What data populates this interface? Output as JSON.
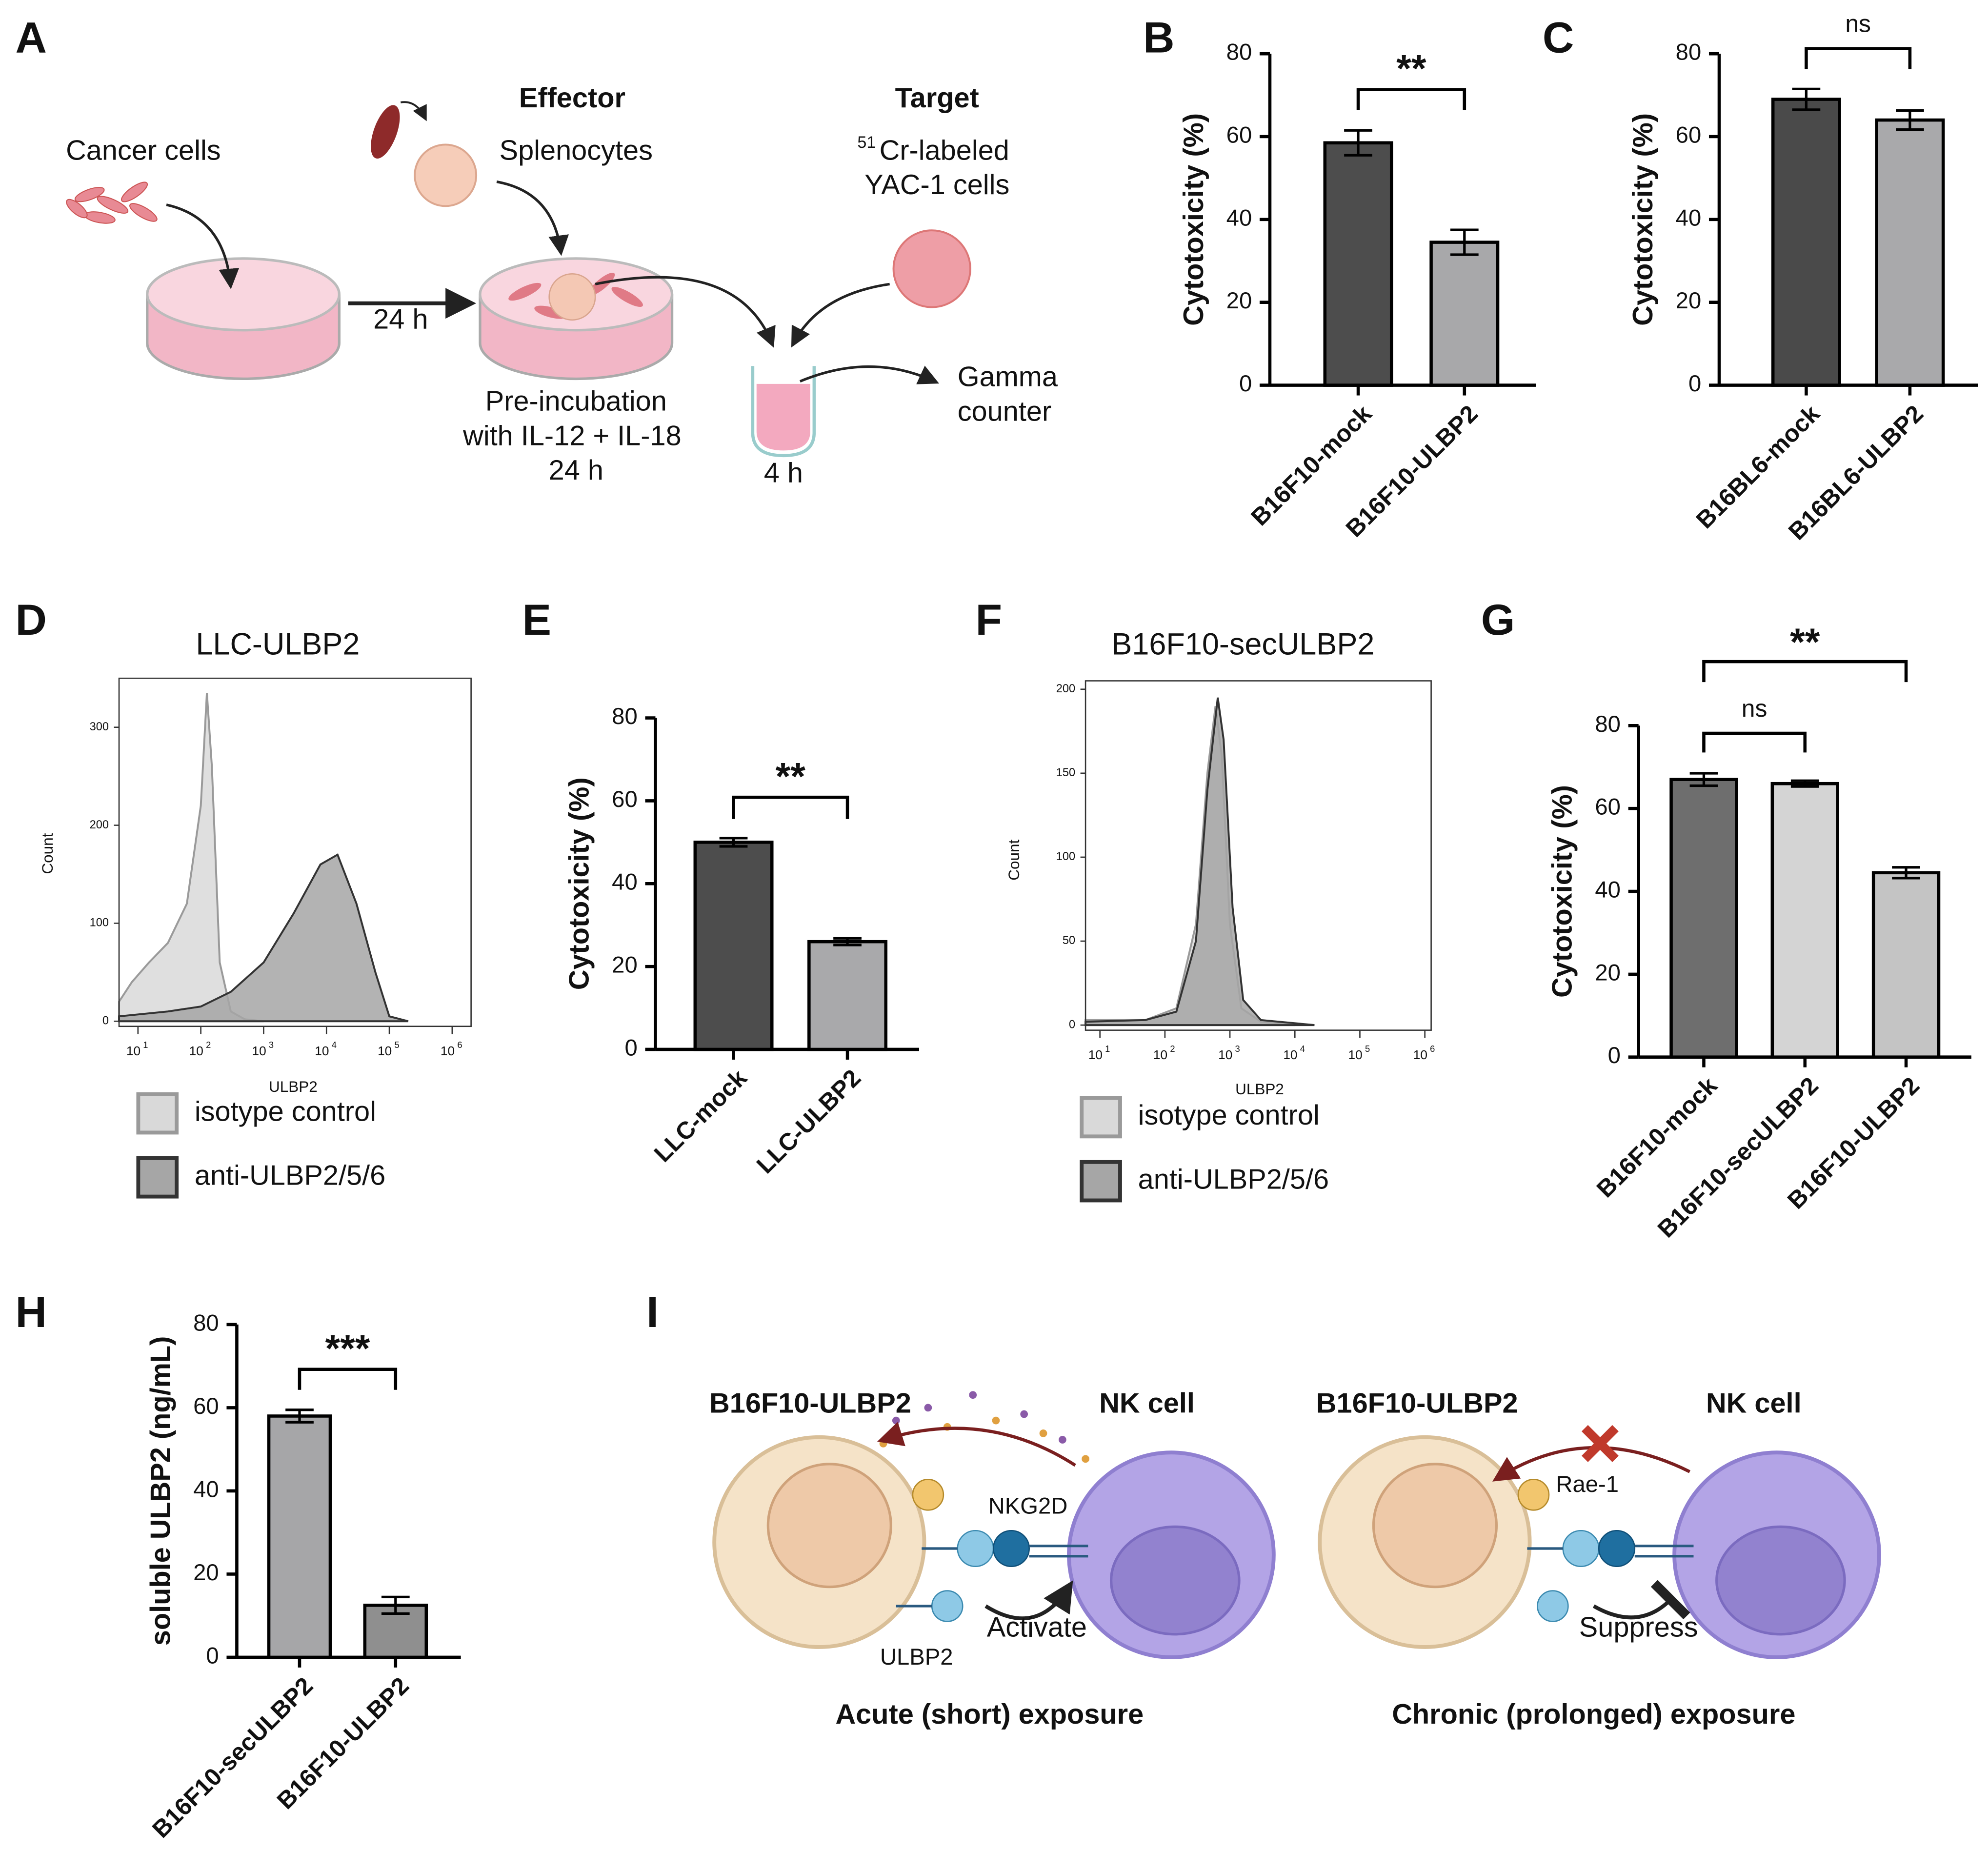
{
  "diagram_a": {
    "panel": "A",
    "cancer": "Cancer cells",
    "effector": "Effector",
    "splenocytes": "Splenocytes",
    "target": "Target",
    "target_sup": "51",
    "target_line1": "Cr-labeled",
    "target_line2": "YAC-1 cells",
    "arrow_time": "24 h",
    "preinc_line1": "Pre-incubation",
    "preinc_line2": "with IL-12 + IL-18",
    "preinc_line3": "24 h",
    "tube_time": "4 h",
    "gamma_line1": "Gamma",
    "gamma_line2": "counter"
  },
  "chart_data": [
    {
      "panel": "B",
      "type": "bar",
      "ylabel": "Cytotoxicity (%)",
      "categories": [
        "B16F10-mock",
        "B16F10-ULBP2"
      ],
      "values": [
        58.5,
        34.5
      ],
      "errors": [
        3,
        3
      ],
      "colors": [
        "#4d4d4d",
        "#a8a8aa"
      ],
      "ylim": [
        0,
        80
      ],
      "yticks": [
        0,
        20,
        40,
        60,
        80
      ],
      "significance": [
        {
          "label": "**",
          "between": [
            0,
            1
          ]
        }
      ]
    },
    {
      "panel": "C",
      "type": "bar",
      "ylabel": "Cytotoxicity (%)",
      "categories": [
        "B16BL6-mock",
        "B16BL6-ULBP2"
      ],
      "values": [
        69,
        64
      ],
      "errors": [
        2.5,
        2.3
      ],
      "colors": [
        "#4a4a4a",
        "#a9a9ab"
      ],
      "ylim": [
        0,
        80
      ],
      "yticks": [
        0,
        20,
        40,
        60,
        80
      ],
      "significance": [
        {
          "label": "ns",
          "between": [
            0,
            1
          ]
        }
      ]
    },
    {
      "panel": "D",
      "type": "area",
      "title": "LLC-ULBP2",
      "xlabel": "ULBP2",
      "ylabel": "Count",
      "xscale": "log",
      "xlim": [
        5,
        2000000
      ],
      "xticks": [
        {
          "value": 10,
          "label": "10",
          "sup": "1"
        },
        {
          "value": 100,
          "label": "10",
          "sup": "2"
        },
        {
          "value": 1000,
          "label": "10",
          "sup": "3"
        },
        {
          "value": 10000,
          "label": "10",
          "sup": "4"
        },
        {
          "value": 100000,
          "label": "10",
          "sup": "5"
        },
        {
          "value": 1000000,
          "label": "10",
          "sup": "6"
        }
      ],
      "ylim": [
        0,
        350
      ],
      "yticks": [
        0,
        100,
        200,
        300
      ],
      "series": [
        {
          "name": "isotype control",
          "color": "#d9d9d9",
          "stroke": "#9a9a9a",
          "x": [
            5,
            8,
            15,
            30,
            60,
            100,
            125,
            150,
            200,
            300,
            500,
            1000
          ],
          "values": [
            20,
            40,
            60,
            80,
            120,
            220,
            335,
            260,
            60,
            10,
            2,
            0
          ]
        },
        {
          "name": "anti-ULBP2/5/6",
          "color": "#a6a6a6",
          "stroke": "#333333",
          "x": [
            5,
            30,
            100,
            300,
            1000,
            3000,
            8000,
            15000,
            30000,
            60000,
            100000,
            200000
          ],
          "values": [
            5,
            10,
            15,
            30,
            60,
            110,
            160,
            170,
            120,
            50,
            5,
            0
          ]
        }
      ]
    },
    {
      "panel": "E",
      "type": "bar",
      "ylabel": "Cytotoxicity (%)",
      "categories": [
        "LLC-mock",
        "LLC-ULBP2"
      ],
      "values": [
        50,
        26
      ],
      "errors": [
        1,
        0.8
      ],
      "colors": [
        "#4d4d4d",
        "#a9a9ab"
      ],
      "ylim": [
        0,
        80
      ],
      "yticks": [
        0,
        20,
        40,
        60,
        80
      ],
      "significance": [
        {
          "label": "**",
          "between": [
            0,
            1
          ]
        }
      ]
    },
    {
      "panel": "F",
      "type": "area",
      "title": "B16F10-secULBP2",
      "xlabel": "ULBP2",
      "ylabel": "Count",
      "xscale": "log",
      "xlim": [
        6,
        1250000
      ],
      "xticks": [
        {
          "value": 10,
          "label": "10",
          "sup": "1"
        },
        {
          "value": 100,
          "label": "10",
          "sup": "2"
        },
        {
          "value": 1000,
          "label": "10",
          "sup": "3"
        },
        {
          "value": 10000,
          "label": "10",
          "sup": "4"
        },
        {
          "value": 100000,
          "label": "10",
          "sup": "5"
        },
        {
          "value": 1000000,
          "label": "10",
          "sup": "6"
        }
      ],
      "ylim": [
        0,
        205
      ],
      "yticks": [
        0,
        50,
        100,
        150,
        200
      ],
      "series": [
        {
          "name": "isotype control",
          "color": "#d9d9d9",
          "stroke": "#9a9a9a",
          "x": [
            6,
            50,
            150,
            300,
            450,
            600,
            750,
            1000,
            1500,
            3000,
            10000
          ],
          "values": [
            3,
            3,
            10,
            60,
            150,
            190,
            160,
            60,
            10,
            2,
            0
          ]
        },
        {
          "name": "anti-ULBP2/5/6",
          "color": "#a6a6a6",
          "stroke": "#333333",
          "x": [
            6,
            50,
            150,
            300,
            450,
            650,
            800,
            1100,
            1600,
            3000,
            20000
          ],
          "values": [
            2,
            3,
            8,
            50,
            140,
            195,
            170,
            70,
            15,
            3,
            0
          ]
        }
      ]
    },
    {
      "panel": "G",
      "type": "bar",
      "ylabel": "Cytotoxicity (%)",
      "categories": [
        "B16F10-mock",
        "B16F10-secULBP2",
        "B16F10-ULBP2"
      ],
      "values": [
        67,
        66,
        44.5
      ],
      "errors": [
        1.5,
        0.7,
        1.3
      ],
      "colors": [
        "#6e6e6e",
        "#d4d4d4",
        "#c4c4c4"
      ],
      "ylim": [
        0,
        80
      ],
      "yticks": [
        0,
        20,
        40,
        60,
        80
      ],
      "significance": [
        {
          "label": "ns",
          "between": [
            0,
            1
          ]
        },
        {
          "label": "**",
          "between": [
            0,
            2
          ]
        }
      ]
    },
    {
      "panel": "H",
      "type": "bar",
      "ylabel": "soluble ULBP2 (ng/mL)",
      "categories": [
        "B16F10-secULBP2",
        "B16F10-ULBP2"
      ],
      "values": [
        58,
        12.5
      ],
      "errors": [
        1.5,
        2
      ],
      "colors": [
        "#a6a6a8",
        "#8f8f8f"
      ],
      "ylim": [
        0,
        80
      ],
      "yticks": [
        0,
        20,
        40,
        60,
        80
      ],
      "significance": [
        {
          "label": "***",
          "between": [
            0,
            1
          ]
        }
      ]
    }
  ],
  "diagram_i": {
    "panel": "I",
    "left_tumor": "B16F10-ULBP2",
    "left_nk": "NK cell",
    "receptor": "NKG2D",
    "activate": "Activate",
    "ligand": "ULBP2",
    "left_caption": "Acute (short) exposure",
    "right_tumor": "B16F10-ULBP2",
    "right_nk": "NK cell",
    "rae": "Rae-1",
    "suppress": "Suppress",
    "right_caption": "Chronic (prolonged) exposure"
  }
}
